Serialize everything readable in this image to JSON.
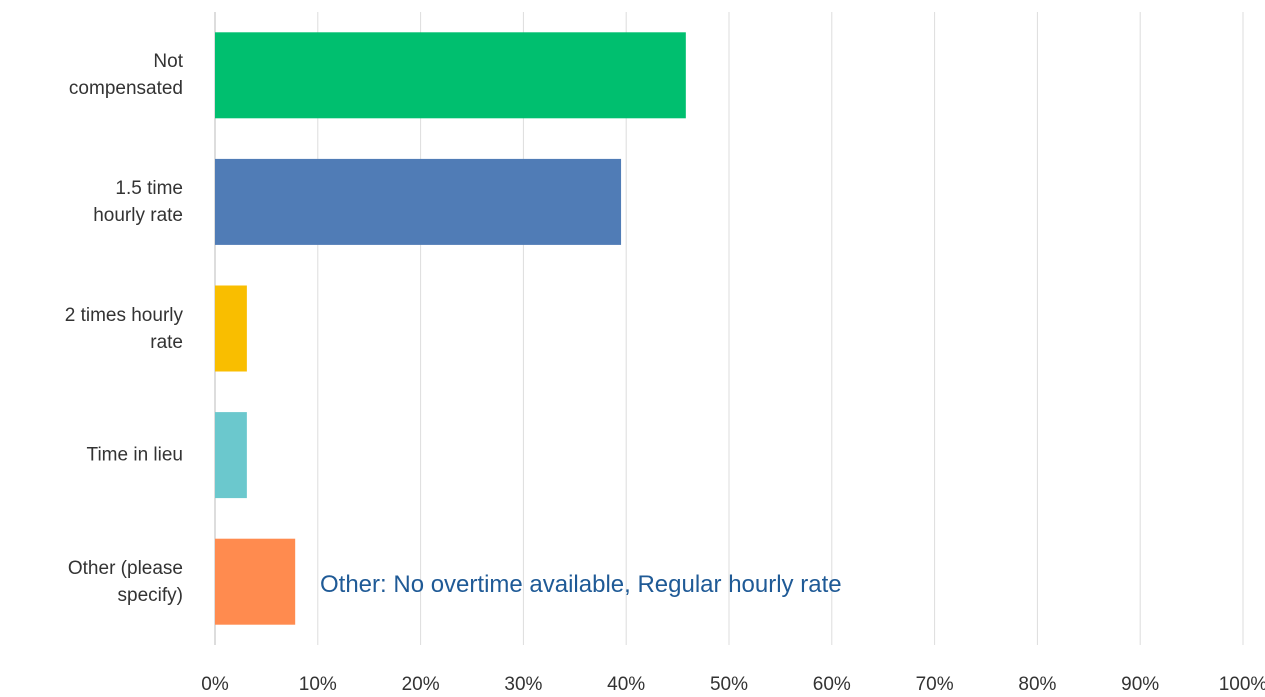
{
  "chart_data": {
    "type": "bar",
    "orientation": "horizontal",
    "categories": [
      "Not compensated",
      "1.5 time hourly rate",
      "2 times hourly rate",
      "Time in lieu",
      "Other (please specify)"
    ],
    "values": [
      45.8,
      39.5,
      3.1,
      3.1,
      7.8
    ],
    "colors": [
      "#00bf6f",
      "#507cb6",
      "#f9be00",
      "#6bc8cd",
      "#ff8b4f"
    ],
    "xlim": [
      0,
      100
    ],
    "xticks": [
      {
        "value": 0,
        "label": "0%"
      },
      {
        "value": 10,
        "label": "10%"
      },
      {
        "value": 20,
        "label": "20%"
      },
      {
        "value": 30,
        "label": "30%"
      },
      {
        "value": 40,
        "label": "40%"
      },
      {
        "value": 50,
        "label": "50%"
      },
      {
        "value": 60,
        "label": "60%"
      },
      {
        "value": 70,
        "label": "70%"
      },
      {
        "value": 80,
        "label": "80%"
      },
      {
        "value": 90,
        "label": "90%"
      },
      {
        "value": 100,
        "label": "100%"
      }
    ],
    "grid": true,
    "annotation": "Other: No overtime available, Regular hourly rate"
  }
}
